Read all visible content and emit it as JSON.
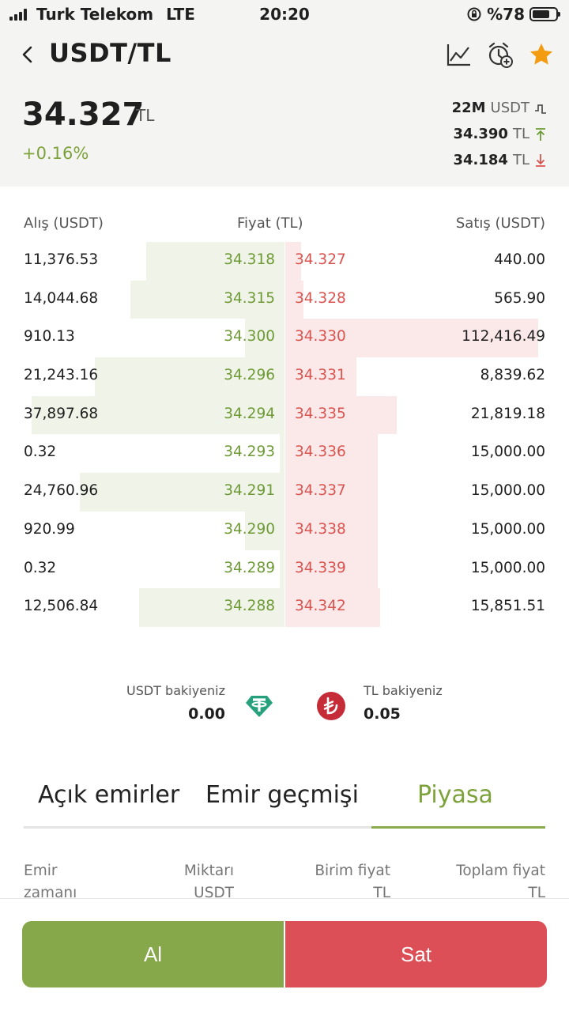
{
  "status_bar": {
    "carrier": "Turk Telekom",
    "network": "LTE",
    "time": "20:20",
    "battery": "%78"
  },
  "header": {
    "title": "USDT/TL",
    "price": "34.327",
    "currency": "TL",
    "change": "+0.16%",
    "volume_value": "22M",
    "volume_unit": "USDT",
    "high_value": "34.390",
    "high_unit": "TL",
    "low_value": "34.184",
    "low_unit": "TL",
    "icons": [
      "chart-icon",
      "alarm-add-icon",
      "star-icon"
    ]
  },
  "orderbook": {
    "col_bid": "Alış (USDT)",
    "col_price": "Fiyat (TL)",
    "col_ask": "Satış (USDT)",
    "rows": [
      {
        "bid_amount": "11,376.53",
        "bid_price": "34.318",
        "ask_price": "34.327",
        "ask_amount": "440.00"
      },
      {
        "bid_amount": "14,044.68",
        "bid_price": "34.315",
        "ask_price": "34.328",
        "ask_amount": "565.90"
      },
      {
        "bid_amount": "910.13",
        "bid_price": "34.300",
        "ask_price": "34.330",
        "ask_amount": "112,416.49"
      },
      {
        "bid_amount": "21,243.16",
        "bid_price": "34.296",
        "ask_price": "34.331",
        "ask_amount": "8,839.62"
      },
      {
        "bid_amount": "37,897.68",
        "bid_price": "34.294",
        "ask_price": "34.335",
        "ask_amount": "21,819.18"
      },
      {
        "bid_amount": "0.32",
        "bid_price": "34.293",
        "ask_price": "34.336",
        "ask_amount": "15,000.00"
      },
      {
        "bid_amount": "24,760.96",
        "bid_price": "34.291",
        "ask_price": "34.337",
        "ask_amount": "15,000.00"
      },
      {
        "bid_amount": "920.99",
        "bid_price": "34.290",
        "ask_price": "34.338",
        "ask_amount": "15,000.00"
      },
      {
        "bid_amount": "0.32",
        "bid_price": "34.289",
        "ask_price": "34.339",
        "ask_amount": "15,000.00"
      },
      {
        "bid_amount": "12,506.84",
        "bid_price": "34.288",
        "ask_price": "34.342",
        "ask_amount": "15,851.51"
      }
    ]
  },
  "balances": {
    "usdt_label": "USDT bakiyeniz",
    "usdt_value": "0.00",
    "tl_label": "TL bakiyeniz",
    "tl_value": "0.05"
  },
  "tabs": [
    {
      "label": "Açık emirler",
      "active": false
    },
    {
      "label": "Emir geçmişi",
      "active": false
    },
    {
      "label": "Piyasa",
      "active": true
    }
  ],
  "table_columns": [
    {
      "line1": "Emir",
      "line2": "zamanı"
    },
    {
      "line1": "Miktarı",
      "line2": "USDT"
    },
    {
      "line1": "Birim fiyat",
      "line2": "TL"
    },
    {
      "line1": "Toplam fiyat",
      "line2": "TL"
    }
  ],
  "actions": {
    "buy_label": "Al",
    "sell_label": "Sat"
  },
  "colors": {
    "buy": "#86a84a",
    "sell": "#dc4f56",
    "bid_price": "#6d9a35",
    "ask_price": "#d9534f",
    "accent": "#7da23c"
  }
}
